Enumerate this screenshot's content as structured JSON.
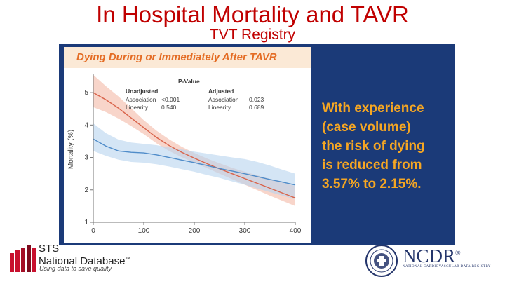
{
  "slide": {
    "title": "In Hospital Mortality and TAVR",
    "subtitle": "TVT Registry"
  },
  "callout_lines": [
    "With experience",
    "(case volume)",
    "the risk of dying",
    "is reduced from",
    "3.57% to 2.15%."
  ],
  "colors": {
    "title": "#c00000",
    "panel": "#1b3a78",
    "callout": "#f5a623",
    "header_bg": "#fbe9d6",
    "header_text": "#e46c24",
    "unadjusted_line": "#d9634a",
    "unadjusted_band": "#f4b9a6",
    "adjusted_line": "#4f8cc9",
    "adjusted_band": "#b8d3ee"
  },
  "chart_data": {
    "type": "line",
    "title": "Dying During or Immediately After TAVR",
    "xlabel": "",
    "ylabel": "Mortality (%)",
    "xlim": [
      0,
      400
    ],
    "ylim": [
      1,
      5.5
    ],
    "x_ticks": [
      "0",
      "100",
      "200",
      "300",
      "400"
    ],
    "y_ticks": [
      "1",
      "2",
      "3",
      "4",
      "5"
    ],
    "table": {
      "heading": "P-Value",
      "groups": [
        {
          "name": "Unadjusted",
          "rows": [
            {
              "label": "Association",
              "value": "<0.001"
            },
            {
              "label": "Linearity",
              "value": "0.540"
            }
          ]
        },
        {
          "name": "Adjusted",
          "rows": [
            {
              "label": "Association",
              "value": "0.023"
            },
            {
              "label": "Linearity",
              "value": "0.689"
            }
          ]
        }
      ]
    },
    "series": [
      {
        "name": "Unadjusted",
        "x": [
          0,
          25,
          50,
          75,
          100,
          125,
          150,
          175,
          200,
          225,
          250,
          275,
          300,
          325,
          350,
          375,
          400
        ],
        "values": [
          5.0,
          4.78,
          4.52,
          4.22,
          3.92,
          3.62,
          3.37,
          3.16,
          2.98,
          2.81,
          2.65,
          2.5,
          2.35,
          2.2,
          2.05,
          1.9,
          1.75
        ],
        "lower": [
          4.55,
          4.4,
          4.2,
          3.97,
          3.72,
          3.44,
          3.2,
          3.01,
          2.84,
          2.67,
          2.5,
          2.33,
          2.16,
          1.99,
          1.82,
          1.66,
          1.5
        ],
        "upper": [
          5.55,
          5.2,
          4.88,
          4.52,
          4.15,
          3.83,
          3.56,
          3.33,
          3.14,
          2.97,
          2.82,
          2.68,
          2.56,
          2.45,
          2.34,
          2.23,
          2.12
        ]
      },
      {
        "name": "Adjusted",
        "x": [
          0,
          25,
          50,
          75,
          100,
          125,
          150,
          175,
          200,
          225,
          250,
          275,
          300,
          325,
          350,
          375,
          400
        ],
        "values": [
          3.57,
          3.35,
          3.2,
          3.16,
          3.14,
          3.08,
          3.0,
          2.92,
          2.84,
          2.75,
          2.66,
          2.58,
          2.5,
          2.41,
          2.32,
          2.24,
          2.15
        ],
        "lower": [
          3.2,
          3.05,
          2.93,
          2.86,
          2.84,
          2.79,
          2.72,
          2.64,
          2.56,
          2.46,
          2.37,
          2.26,
          2.16,
          2.04,
          1.93,
          1.82,
          1.71
        ],
        "upper": [
          4.05,
          3.75,
          3.55,
          3.46,
          3.42,
          3.38,
          3.31,
          3.25,
          3.18,
          3.12,
          3.06,
          3.0,
          2.95,
          2.86,
          2.75,
          2.62,
          2.5
        ]
      }
    ]
  },
  "logos": {
    "sts_name": "STS",
    "sts_db": "National Database",
    "sts_tm": "™",
    "sts_tagline": "Using data to save quality",
    "ncdr_name": "NCDR",
    "ncdr_reg": "®",
    "ncdr_tagline": "NATIONAL CARDIOVASCULAR DATA REGISTRY"
  }
}
